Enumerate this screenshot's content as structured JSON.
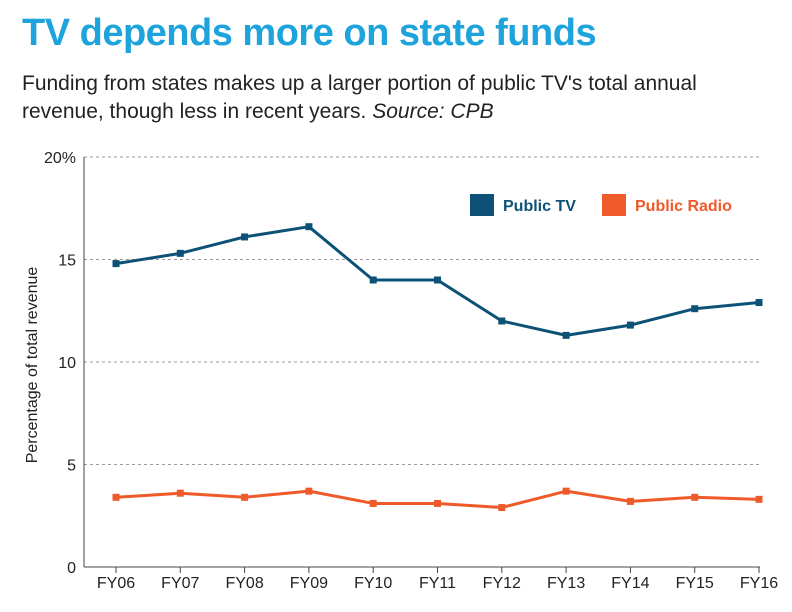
{
  "title": "TV depends more on state funds",
  "subtitle_main": "Funding from states makes up a larger portion of public TV's total annual revenue, though less in recent years.",
  "subtitle_source": "Source: CPB",
  "colors": {
    "title": "#1ea4dc",
    "tv": "#0d5276",
    "radio": "#ee5a2a",
    "grid": "#999999"
  },
  "chart_data": {
    "type": "line",
    "categories": [
      "FY06",
      "FY07",
      "FY08",
      "FY09",
      "FY10",
      "FY11",
      "FY12",
      "FY13",
      "FY14",
      "FY15",
      "FY16"
    ],
    "series": [
      {
        "name": "Public TV",
        "values": [
          14.8,
          15.3,
          16.1,
          16.6,
          14.0,
          14.0,
          12.0,
          11.3,
          11.8,
          12.6,
          12.9
        ]
      },
      {
        "name": "Public Radio",
        "values": [
          3.4,
          3.6,
          3.4,
          3.7,
          3.1,
          3.1,
          2.9,
          3.7,
          3.2,
          3.4,
          3.3
        ]
      }
    ],
    "ylabel": "Percentage of total revenue",
    "xlabel": "",
    "ylim": [
      0,
      20
    ],
    "yticks": [
      0,
      5,
      10,
      15,
      20
    ],
    "ytick_labels": [
      "0",
      "5",
      "10",
      "15",
      "20%"
    ],
    "grid": "horizontal dashed",
    "legend_position": "top-right"
  }
}
